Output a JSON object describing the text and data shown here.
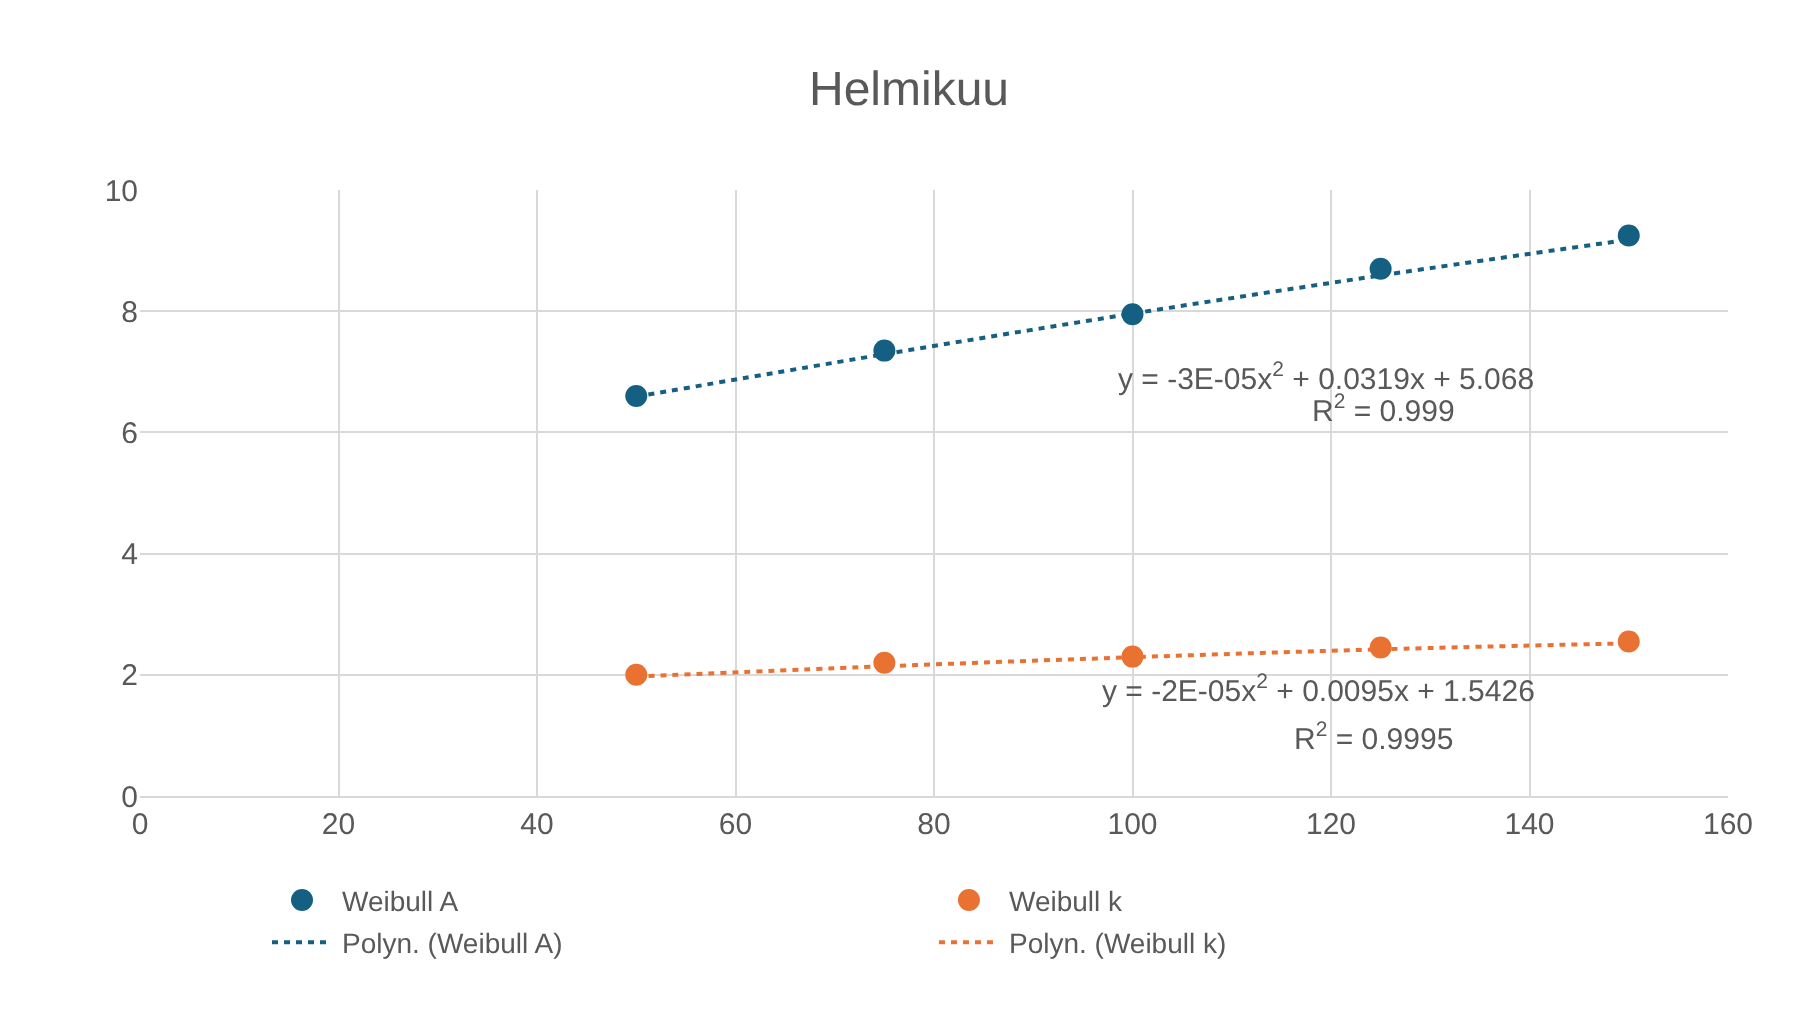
{
  "chart_data": {
    "type": "scatter",
    "title": "Helmikuu",
    "x": [
      50,
      75,
      100,
      125,
      150
    ],
    "series": [
      {
        "name": "Weibull A",
        "marker": "circle",
        "color": "#156082",
        "values": [
          6.6,
          7.35,
          7.95,
          8.7,
          9.25
        ]
      },
      {
        "name": "Weibull k",
        "marker": "circle",
        "color": "#e97132",
        "values": [
          2.0,
          2.2,
          2.3,
          2.45,
          2.55
        ]
      },
      {
        "name": "Polyn. (Weibull A)",
        "type": "line",
        "marker": "none",
        "line_style": "dotted",
        "color": "#156082",
        "values": [
          6.59,
          7.29,
          7.96,
          8.59,
          9.18
        ]
      },
      {
        "name": "Polyn. (Weibull k)",
        "type": "line",
        "marker": "none",
        "line_style": "dotted",
        "color": "#e97132",
        "values": [
          1.97,
          2.14,
          2.29,
          2.42,
          2.52
        ]
      }
    ],
    "annotations": [
      "y = -3E-05x$^{2}$ + 0.0319x + 5.068",
      "R$^{2}$ = 0.999",
      "y = -2E-05x$^{2}$ + 0.0095x + 1.5426",
      "R$^{2}$ = 0.9995"
    ],
    "xlim": [
      0,
      160
    ],
    "xticks": [
      0,
      20,
      40,
      60,
      80,
      100,
      120,
      140,
      160
    ],
    "ylim": [
      0,
      10
    ],
    "yticks": [
      0,
      2,
      4,
      6,
      8,
      10
    ],
    "grid": true,
    "legend": "bottom"
  }
}
